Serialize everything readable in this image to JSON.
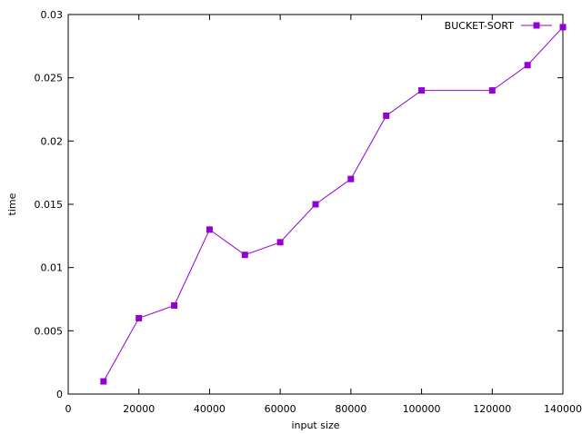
{
  "chart_data": {
    "type": "line",
    "title": "",
    "xlabel": "input size",
    "ylabel": "time",
    "xlim": [
      0,
      140000
    ],
    "ylim": [
      0,
      0.03
    ],
    "x_ticks": [
      "0",
      "20000",
      "40000",
      "60000",
      "80000",
      "100000",
      "120000",
      "140000"
    ],
    "y_ticks": [
      "0",
      "0.005",
      "0.01",
      "0.015",
      "0.02",
      "0.025",
      "0.03"
    ],
    "grid": false,
    "legend_position": "top-right",
    "series": [
      {
        "name": "BUCKET-SORT",
        "color": "#9400d3",
        "marker": "square",
        "x": [
          10000,
          20000,
          30000,
          40000,
          50000,
          60000,
          70000,
          80000,
          90000,
          100000,
          120000,
          130000,
          140000
        ],
        "y": [
          0.001,
          0.006,
          0.007,
          0.013,
          0.011,
          0.012,
          0.015,
          0.017,
          0.022,
          0.024,
          0.024,
          0.026,
          0.029
        ]
      }
    ]
  }
}
